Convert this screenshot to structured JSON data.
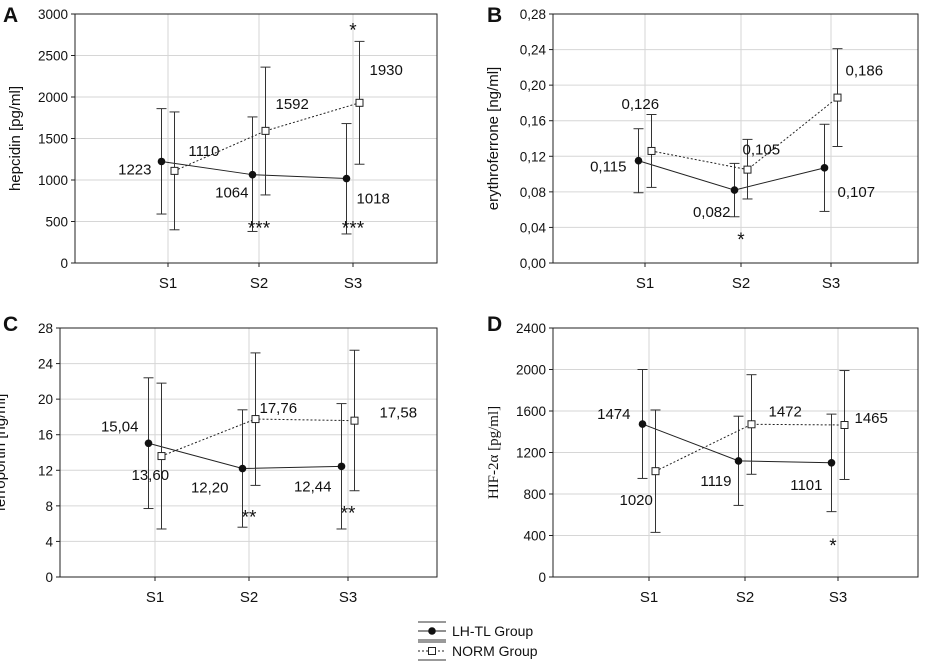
{
  "legend": {
    "entries": [
      {
        "label": "LH-TL Group",
        "marker": "filled-circle",
        "line": "solid"
      },
      {
        "label": "NORM Group",
        "marker": "open-square",
        "line": "dotted"
      }
    ]
  },
  "chart_data": [
    {
      "panel": "A",
      "type": "line",
      "ylabel": "hepcidin [pg/ml]",
      "categories": [
        "S1",
        "S2",
        "S3"
      ],
      "ylim": [
        0,
        3000
      ],
      "yticks": [
        0,
        500,
        1000,
        1500,
        2000,
        2500,
        3000
      ],
      "ytick_labels": [
        "0",
        "500",
        "1000",
        "1500",
        "2000",
        "2500",
        "3000"
      ],
      "series": [
        {
          "name": "LH-TL Group",
          "values": [
            1223,
            1064,
            1018
          ],
          "errors": [
            [
              590,
              1860
            ],
            [
              380,
              1760
            ],
            [
              350,
              1680
            ]
          ],
          "labels": [
            "1223",
            "1064",
            "1018"
          ]
        },
        {
          "name": "NORM Group",
          "values": [
            1110,
            1592,
            1930
          ],
          "errors": [
            [
              400,
              1820
            ],
            [
              820,
              2360
            ],
            [
              1190,
              2670
            ]
          ],
          "labels": [
            "1110",
            "1592",
            "1930"
          ]
        }
      ],
      "annotations": [
        {
          "text": "***",
          "category": "S2"
        },
        {
          "text": "***",
          "category": "S3"
        },
        {
          "text": "*",
          "category": "S3"
        }
      ]
    },
    {
      "panel": "B",
      "type": "line",
      "ylabel": "erythroferrone [ng/ml]",
      "categories": [
        "S1",
        "S2",
        "S3"
      ],
      "ylim": [
        0,
        0.28
      ],
      "yticks": [
        0,
        0.04,
        0.08,
        0.12,
        0.16,
        0.2,
        0.24,
        0.28
      ],
      "ytick_labels": [
        "0,00",
        "0,04",
        "0,08",
        "0,12",
        "0,16",
        "0,20",
        "0,24",
        "0,28"
      ],
      "series": [
        {
          "name": "LH-TL Group",
          "values": [
            0.115,
            0.082,
            0.107
          ],
          "errors": [
            [
              0.079,
              0.151
            ],
            [
              0.052,
              0.112
            ],
            [
              0.058,
              0.156
            ]
          ],
          "labels": [
            "0,115",
            "0,082",
            "0,107"
          ]
        },
        {
          "name": "NORM Group",
          "values": [
            0.126,
            0.105,
            0.186
          ],
          "errors": [
            [
              0.085,
              0.167
            ],
            [
              0.072,
              0.139
            ],
            [
              0.131,
              0.241
            ]
          ],
          "labels": [
            "0,126",
            "0,105",
            "0,186"
          ]
        }
      ],
      "annotations": [
        {
          "text": "*",
          "category": "S2"
        }
      ]
    },
    {
      "panel": "C",
      "type": "line",
      "ylabel": "ferroportin [ng/ml]",
      "categories": [
        "S1",
        "S2",
        "S3"
      ],
      "ylim": [
        0,
        28
      ],
      "yticks": [
        0,
        4,
        8,
        12,
        16,
        20,
        24,
        28
      ],
      "ytick_labels": [
        "0",
        "4",
        "8",
        "12",
        "16",
        "20",
        "24",
        "28"
      ],
      "series": [
        {
          "name": "LH-TL Group",
          "values": [
            15.04,
            12.2,
            12.44
          ],
          "errors": [
            [
              7.7,
              22.4
            ],
            [
              5.6,
              18.8
            ],
            [
              5.4,
              19.5
            ]
          ],
          "labels": [
            "15,04",
            "12,20",
            "12,44"
          ]
        },
        {
          "name": "NORM Group",
          "values": [
            13.6,
            17.76,
            17.58
          ],
          "errors": [
            [
              5.4,
              21.8
            ],
            [
              10.3,
              25.2
            ],
            [
              9.7,
              25.5
            ]
          ],
          "labels": [
            "13,60",
            "17,76",
            "17,58"
          ]
        }
      ],
      "annotations": [
        {
          "text": "**",
          "category": "S2"
        },
        {
          "text": "**",
          "category": "S3"
        }
      ]
    },
    {
      "panel": "D",
      "type": "line",
      "ylabel": "HIF-2α [pg/ml]",
      "categories": [
        "S1",
        "S2",
        "S3"
      ],
      "ylim": [
        0,
        2400
      ],
      "yticks": [
        0,
        400,
        800,
        1200,
        1600,
        2000,
        2400
      ],
      "ytick_labels": [
        "0",
        "400",
        "800",
        "1200",
        "1600",
        "2000",
        "2400"
      ],
      "series": [
        {
          "name": "LH-TL Group",
          "values": [
            1474,
            1119,
            1101
          ],
          "errors": [
            [
              950,
              2000
            ],
            [
              690,
              1550
            ],
            [
              630,
              1570
            ]
          ],
          "labels": [
            "1474",
            "1119",
            "1101"
          ]
        },
        {
          "name": "NORM Group",
          "values": [
            1020,
            1472,
            1465
          ],
          "errors": [
            [
              430,
              1610
            ],
            [
              990,
              1950
            ],
            [
              940,
              1990
            ]
          ],
          "labels": [
            "1020",
            "1472",
            "1465"
          ]
        }
      ],
      "annotations": [
        {
          "text": "*",
          "category": "S3"
        }
      ]
    }
  ]
}
